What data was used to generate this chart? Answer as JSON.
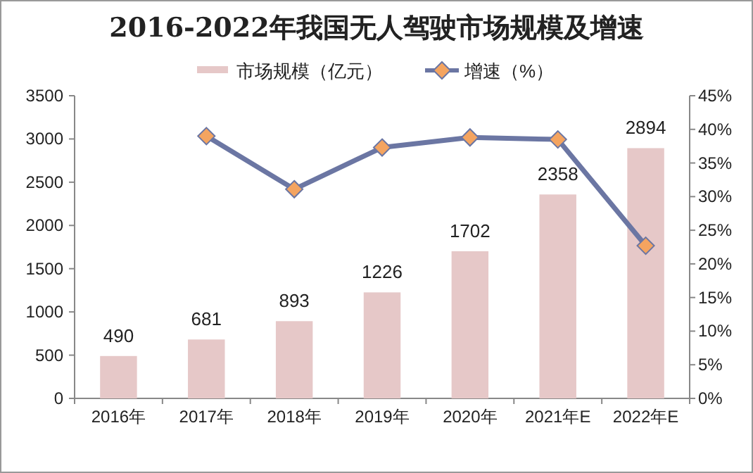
{
  "chart_data": {
    "type": "bar",
    "title": "2016-2022年我国无人驾驶市场规模及增速",
    "categories": [
      "2016年",
      "2017年",
      "2018年",
      "2019年",
      "2020年",
      "2021年E",
      "2022年E"
    ],
    "series": [
      {
        "name": "市场规模（亿元）",
        "color": "#e6c8c8",
        "values": [
          490,
          681,
          893,
          1226,
          1702,
          2358,
          2894
        ],
        "data_labels": true
      },
      {
        "name": "增速（%）",
        "type": "line",
        "axis": "y2",
        "color": "#6b76a3",
        "marker": "diamond",
        "colors": [
          "#f4a460",
          "#f4a460",
          "#f4a460",
          "#f4a460",
          "#f4a460",
          "#f4a460",
          "#f4a460"
        ],
        "values": [
          null,
          39.0,
          31.1,
          37.3,
          38.8,
          38.5,
          22.7
        ]
      }
    ],
    "ylim": [
      0,
      3500
    ],
    "yticks": [
      0,
      500,
      1000,
      1500,
      2000,
      2500,
      3000,
      3500
    ],
    "y2lim": [
      0,
      45
    ],
    "y2ticks": [
      {
        "value": 0,
        "label": "0%"
      },
      {
        "value": 5,
        "label": "5%"
      },
      {
        "value": 10,
        "label": "10%"
      },
      {
        "value": 15,
        "label": "15%"
      },
      {
        "value": 20,
        "label": "20%"
      },
      {
        "value": 25,
        "label": "25%"
      },
      {
        "value": 30,
        "label": "30%"
      },
      {
        "value": 35,
        "label": "35%"
      },
      {
        "value": 40,
        "label": "40%"
      },
      {
        "value": 45,
        "label": "45%"
      }
    ],
    "grid": false,
    "legend": "top"
  }
}
